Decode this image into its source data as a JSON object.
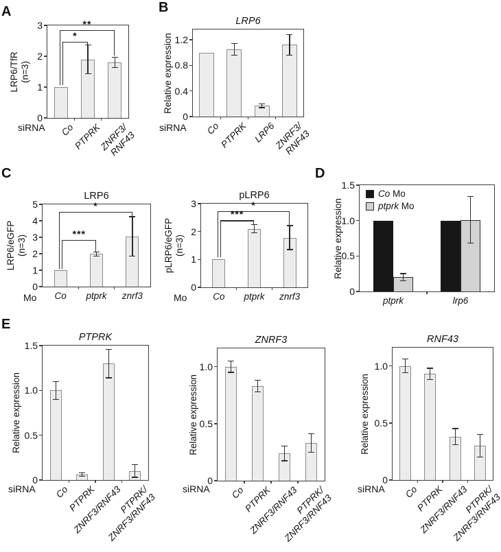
{
  "figure": {
    "panel_labels": [
      "A",
      "B",
      "C",
      "D",
      "E"
    ]
  },
  "chart_data": [
    {
      "panel": "A",
      "type": "bar",
      "title": "",
      "title_italic": false,
      "ylabel_lines": [
        "LRP6/TfR",
        "(n=3)"
      ],
      "ylim": [
        0,
        3
      ],
      "yticks": [
        {
          "v": 0,
          "label": "0"
        },
        {
          "v": 1,
          "label": "1"
        },
        {
          "v": 2,
          "label": "2"
        },
        {
          "v": 3,
          "label": "3"
        }
      ],
      "x_prefix": "siRNA",
      "categories": [
        [
          "Co"
        ],
        [
          "PTPRK"
        ],
        [
          "ZNRF3/",
          "RNF43"
        ]
      ],
      "values": [
        1.0,
        1.9,
        1.8
      ],
      "errors": [
        null,
        0.46,
        0.16
      ],
      "bar_fill": "#ececec",
      "bar_border": "#8a8a8a",
      "significance": [
        {
          "from": 0,
          "to": 1,
          "y": 2.47,
          "left_end": 1.06,
          "right_end": 2.38,
          "label": "*",
          "lxo": 2
        },
        {
          "from": 0,
          "to": 2,
          "y": 2.84,
          "left_end": 1.06,
          "right_end": 2.02,
          "label": "**",
          "lxo": -2
        }
      ]
    },
    {
      "panel": "B",
      "type": "bar",
      "title": "LRP6",
      "title_italic": true,
      "ylabel_lines": [
        "Relative expression"
      ],
      "ylim": [
        0,
        1.36
      ],
      "yticks": [
        {
          "v": 0,
          "label": "0"
        },
        {
          "v": 0.4,
          "label": "0.4"
        },
        {
          "v": 0.8,
          "label": "0.8"
        },
        {
          "v": 1.2,
          "label": "1.2"
        }
      ],
      "x_prefix": "siRNA",
      "categories": [
        [
          "Co"
        ],
        [
          "PTPRK"
        ],
        [
          "LRP6"
        ],
        [
          "ZNRF3/",
          "RNF43"
        ]
      ],
      "values": [
        1.0,
        1.05,
        0.17,
        1.12
      ],
      "errors": [
        null,
        0.09,
        0.03,
        0.16
      ],
      "bar_fill": "#ececec",
      "bar_border": "#8a8a8a",
      "significance": []
    },
    {
      "panel": "C",
      "type": "bar",
      "title": "LRP6",
      "title_italic": false,
      "ylabel_lines": [
        "LRP6/eGFP",
        "(n=3)"
      ],
      "ylim": [
        0,
        5
      ],
      "yticks": [
        {
          "v": 0,
          "label": "0"
        },
        {
          "v": 1,
          "label": "1"
        },
        {
          "v": 2,
          "label": "2"
        },
        {
          "v": 3,
          "label": "3"
        },
        {
          "v": 4,
          "label": "4"
        },
        {
          "v": 5,
          "label": "5"
        }
      ],
      "x_prefix": "Mo",
      "categories": [
        [
          "Co"
        ],
        [
          "ptprk"
        ],
        [
          "znrf3"
        ]
      ],
      "values": [
        1.0,
        1.98,
        3.05
      ],
      "errors": [
        null,
        0.13,
        1.2
      ],
      "bar_fill": "#ececec",
      "bar_border": "#8a8a8a",
      "significance": [
        {
          "from": 0,
          "to": 1,
          "y": 2.83,
          "left_end": 1.08,
          "right_end": 2.12,
          "label": "***",
          "lxo": 2
        },
        {
          "from": 0,
          "to": 2,
          "y": 4.55,
          "left_end": 1.08,
          "right_end": 4.2,
          "label": "*",
          "lxo": -2
        }
      ]
    },
    {
      "panel": "C",
      "type": "bar",
      "title": "pLRP6",
      "title_italic": false,
      "ylabel_lines": [
        "pLRP6/eGFP",
        "(n=3)"
      ],
      "ylim": [
        0,
        3
      ],
      "yticks": [
        {
          "v": 0,
          "label": "0"
        },
        {
          "v": 1,
          "label": "1"
        },
        {
          "v": 2,
          "label": "2"
        },
        {
          "v": 3,
          "label": "3"
        }
      ],
      "x_prefix": "Mo",
      "categories": [
        [
          "Co"
        ],
        [
          "ptprk"
        ],
        [
          "znrf3"
        ]
      ],
      "values": [
        1.0,
        2.1,
        1.78
      ],
      "errors": [
        null,
        0.15,
        0.43
      ],
      "bar_fill": "#ececec",
      "bar_border": "#8a8a8a",
      "significance": [
        {
          "from": 0,
          "to": 1,
          "y": 2.4,
          "left_end": 1.08,
          "right_end": 2.27,
          "label": "***",
          "lxo": 2
        },
        {
          "from": 0,
          "to": 2,
          "y": 2.74,
          "left_end": 1.08,
          "right_end": 2.24,
          "label": "*",
          "lxo": -2
        }
      ]
    },
    {
      "panel": "D",
      "type": "grouped-bar",
      "title": "",
      "title_italic": false,
      "ylabel_lines": [
        "Relative expression"
      ],
      "ylim": [
        0,
        1.5
      ],
      "yticks": [
        {
          "v": 0,
          "label": "0"
        },
        {
          "v": 0.5,
          "label": "0.5"
        },
        {
          "v": 1,
          "label": "1.0"
        },
        {
          "v": 1.5,
          "label": "1.5"
        }
      ],
      "x_prefix": "",
      "categories": [
        [
          "ptprk"
        ],
        [
          "lrp6"
        ]
      ],
      "series": [
        {
          "gene": "Co",
          "suffix": "Mo",
          "fill": "#171717",
          "border": "#171717",
          "values": [
            1.0,
            1.0
          ],
          "errors": [
            null,
            null
          ]
        },
        {
          "gene": "ptprk",
          "suffix": "Mo",
          "fill": "#d2d2d2",
          "border": "#2b2b2b",
          "values": [
            0.2,
            1.01
          ],
          "errors": [
            0.05,
            0.33
          ]
        }
      ],
      "legend": true,
      "significance": []
    },
    {
      "panel": "E",
      "type": "bar",
      "title": "PTPRK",
      "title_italic": true,
      "ylabel_lines": [
        "Relative expression"
      ],
      "ylim": [
        0,
        1.5
      ],
      "yticks": [
        {
          "v": 0,
          "label": "0"
        },
        {
          "v": 0.5,
          "label": "0.5"
        },
        {
          "v": 1,
          "label": "1.0"
        },
        {
          "v": 1.5,
          "label": "1.5"
        }
      ],
      "x_prefix": "siRNA",
      "categories": [
        [
          "Co"
        ],
        [
          "PTPRK"
        ],
        [
          "ZNRF3/RNF43"
        ],
        [
          "PTPRK/",
          "ZNRF3/RNF43"
        ]
      ],
      "values": [
        1.0,
        0.06,
        1.3,
        0.1
      ],
      "errors": [
        0.1,
        0.02,
        0.16,
        0.07
      ],
      "bar_fill": "#ececec",
      "bar_border": "#8a8a8a",
      "significance": []
    },
    {
      "panel": "E",
      "type": "bar",
      "title": "ZNRF3",
      "title_italic": true,
      "ylabel_lines": [
        "Relative expression"
      ],
      "ylim": [
        0,
        1.16
      ],
      "yticks": [
        {
          "v": 0,
          "label": "0"
        },
        {
          "v": 0.5,
          "label": "0.5"
        },
        {
          "v": 1,
          "label": "1.0"
        }
      ],
      "x_prefix": "siRNA",
      "categories": [
        [
          "Co"
        ],
        [
          "PTPRK"
        ],
        [
          "ZNRF3/RNF43"
        ],
        [
          "PTPRK/",
          "ZNRF3/RNF43"
        ]
      ],
      "values": [
        1.0,
        0.83,
        0.24,
        0.33
      ],
      "errors": [
        0.05,
        0.05,
        0.065,
        0.08
      ],
      "bar_fill": "#ececec",
      "bar_border": "#8a8a8a",
      "significance": []
    },
    {
      "panel": "E",
      "type": "bar",
      "title": "RNF43",
      "title_italic": true,
      "ylabel_lines": [
        "Relative expression"
      ],
      "ylim": [
        0,
        1.16
      ],
      "yticks": [
        {
          "v": 0,
          "label": "0"
        },
        {
          "v": 0.5,
          "label": "0.5"
        },
        {
          "v": 1,
          "label": "1.0"
        }
      ],
      "x_prefix": "siRNA",
      "categories": [
        [
          "Co"
        ],
        [
          "PTPRK"
        ],
        [
          "ZNRF3/RNF43"
        ],
        [
          "PTPRK/",
          "ZNRF3/RNF43"
        ]
      ],
      "values": [
        1.0,
        0.93,
        0.38,
        0.3
      ],
      "errors": [
        0.06,
        0.05,
        0.07,
        0.1
      ],
      "bar_fill": "#ececec",
      "bar_border": "#8a8a8a",
      "significance": []
    }
  ]
}
